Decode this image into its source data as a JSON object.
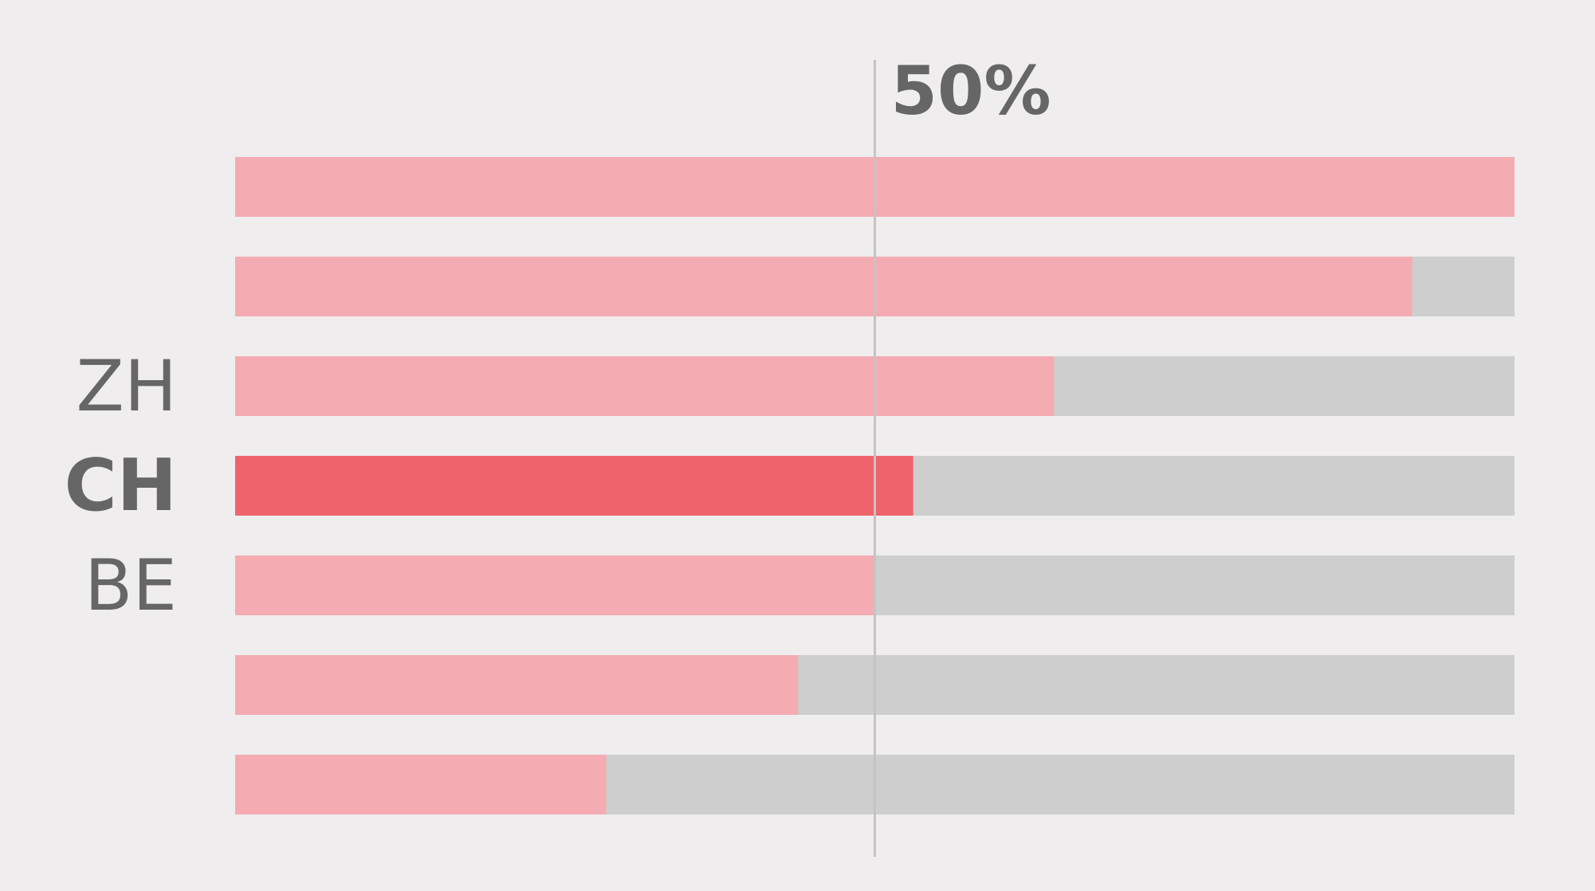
{
  "chart_data": {
    "type": "bar",
    "orientation": "horizontal",
    "stacked_remainder": true,
    "xlim": [
      0,
      100
    ],
    "categories": [
      "",
      "",
      "ZH",
      "CH",
      "BE",
      "",
      ""
    ],
    "values": [
      100,
      92,
      64,
      53,
      50,
      44,
      29
    ],
    "highlight_index": 3,
    "reference_line": {
      "value": 50,
      "label": "50%"
    },
    "colors": {
      "background": "#efedee",
      "bar": "#f4abb2",
      "bar_highlight": "#ef636d",
      "remainder": "#cecece",
      "reference_line": "#c4c4c4",
      "text": "#666666"
    },
    "grid": false,
    "legend": "none"
  }
}
